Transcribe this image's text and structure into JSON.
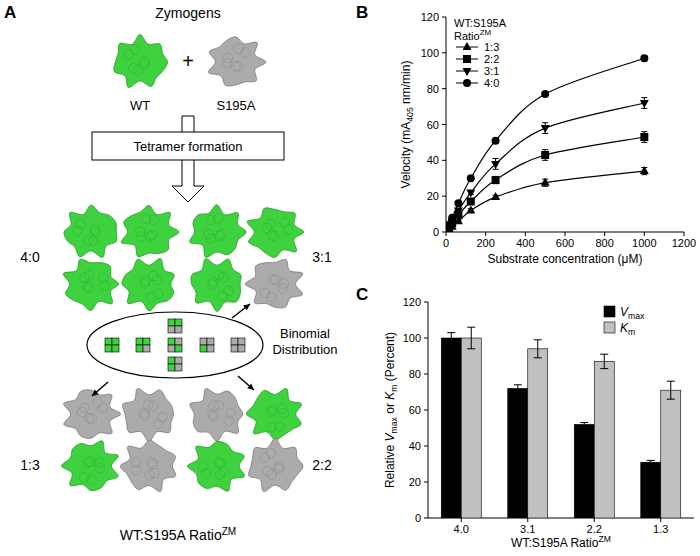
{
  "diagram": {
    "panel_label": "A",
    "title": "Zymogens",
    "monomers": [
      "WT",
      "S195A"
    ],
    "operator": "+",
    "step": "Tetramer formation",
    "tetramers": [
      "4:0",
      "3:1",
      "1:3",
      "2:2"
    ],
    "distribution": "Binomial Distribution",
    "caption": "WT:S195A RatioZM"
  },
  "chart_data": [
    {
      "type": "line",
      "panel_label": "B",
      "x_label": "Substrate concentration (μM)",
      "y_label": "Velocity (mA405 nm/min)",
      "legend_title": [
        "WT:S195A",
        "RatioZM"
      ],
      "legend": "upper left",
      "x": [
        0,
        15.6,
        31.25,
        62.5,
        125,
        250,
        500,
        1000
      ],
      "xlim": [
        0,
        1200
      ],
      "xticks": [
        0,
        200,
        400,
        600,
        800,
        1000,
        1200
      ],
      "ylim": [
        0,
        120
      ],
      "yticks": [
        0,
        20,
        40,
        60,
        80,
        100,
        120
      ],
      "series": [
        {
          "name": "1:3",
          "color": "#000000",
          "marker": "triangle",
          "values": [
            0,
            1.5,
            3,
            6,
            12,
            19.5,
            27.5,
            34
          ],
          "errors": [
            0,
            0.5,
            0.5,
            0.5,
            1,
            1,
            2,
            2
          ]
        },
        {
          "name": "2:2",
          "color": "#000000",
          "marker": "square",
          "values": [
            0,
            2.5,
            5,
            9.5,
            17,
            29,
            43,
            53
          ],
          "errors": [
            0,
            0.5,
            0.5,
            1,
            1.5,
            2,
            3,
            3
          ]
        },
        {
          "name": "3:1",
          "color": "#000000",
          "marker": "triangle-down",
          "values": [
            0,
            3,
            6,
            12,
            22,
            38,
            58,
            72
          ],
          "errors": [
            0,
            0.5,
            0.5,
            1,
            1,
            3,
            3,
            3
          ]
        },
        {
          "name": "4:0",
          "color": "#000000",
          "marker": "circle",
          "values": [
            0,
            4,
            8,
            16,
            30,
            51,
            77,
            97
          ],
          "errors": [
            0,
            0.5,
            0.5,
            1,
            1,
            1,
            1,
            1.5
          ]
        }
      ]
    },
    {
      "type": "bar",
      "panel_label": "C",
      "x_label": "WT:S195A RatioZM",
      "y_label": "Relative Vmax or Km (Percent)",
      "categories": [
        "4.0",
        "3.1",
        "2.2",
        "1.3"
      ],
      "ylim": [
        0,
        120
      ],
      "yticks": [
        0,
        20,
        40,
        60,
        80,
        100,
        120
      ],
      "legend": "upper right",
      "series": [
        {
          "name": "Vmax",
          "color": "#000000",
          "values": [
            100,
            72,
            52,
            31
          ],
          "errors": [
            3,
            2,
            1,
            1
          ]
        },
        {
          "name": "Km",
          "color": "#c0c0c0",
          "values": [
            100,
            94,
            87,
            71
          ],
          "errors": [
            6,
            5,
            4,
            5
          ]
        }
      ]
    }
  ]
}
